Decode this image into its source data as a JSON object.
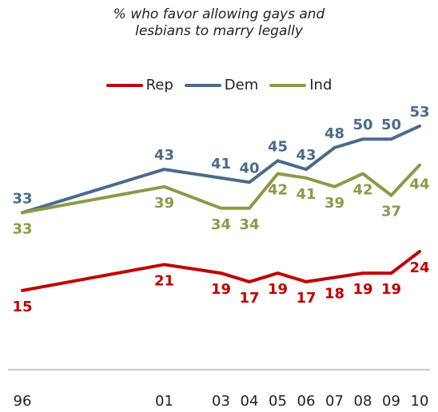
{
  "chart_data": {
    "type": "line",
    "title": "% who favor allowing gays and\nlesbians to marry legally",
    "categories": [
      "96",
      "01",
      "03",
      "04",
      "05",
      "06",
      "07",
      "08",
      "09",
      "10"
    ],
    "series": [
      {
        "name": "Rep",
        "color": "#c00000",
        "values": [
          15,
          21,
          19,
          17,
          19,
          17,
          18,
          19,
          19,
          24
        ]
      },
      {
        "name": "Dem",
        "color": "#4a6b8a",
        "values": [
          33,
          43,
          41,
          40,
          45,
          43,
          48,
          50,
          50,
          53
        ]
      },
      {
        "name": "Ind",
        "color": "#8b9a46",
        "values": [
          33,
          39,
          34,
          34,
          42,
          41,
          39,
          42,
          37,
          44
        ]
      }
    ],
    "ylim": [
      0,
      60
    ],
    "grid": false,
    "legend": "top"
  }
}
